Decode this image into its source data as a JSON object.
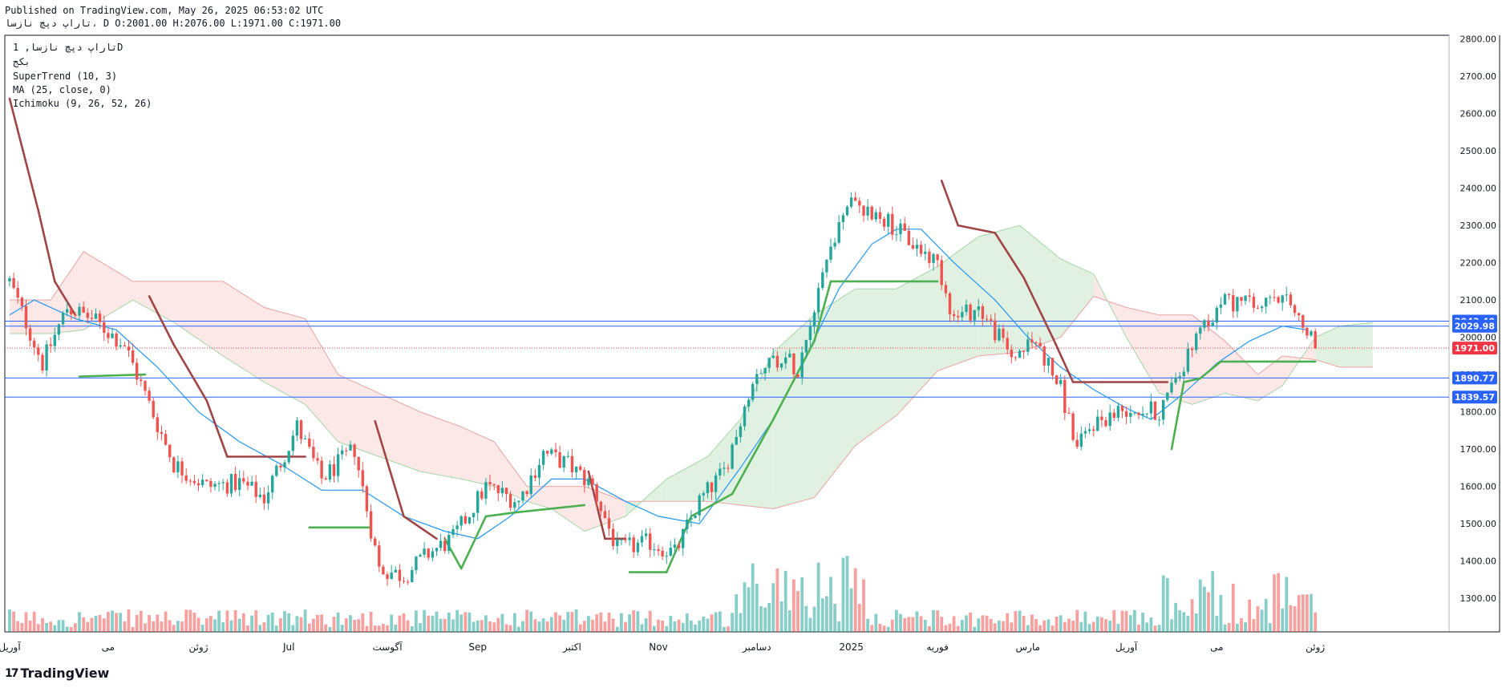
{
  "header": {
    "published": "Published on TradingView.com, May 26, 2025 06:53:02 UTC",
    "symbol_line": "تاراپ دپچ نازسا، D",
    "ohlc": "O:2001.00 H:2076.00 L:1971.00 C:1971.00"
  },
  "legend": {
    "line1": "تاراپ دپچ نازسا, 1D",
    "line2": "بکج",
    "line3": "SuperTrend (10, 3)",
    "line4": "MA (25, close, 0)",
    "line5": "Ichimoku (9, 26, 52, 26)"
  },
  "brand": {
    "mark": "17",
    "name": "TradingView"
  },
  "colors": {
    "bull": "#26a69a",
    "bear": "#ef5350",
    "supertrend_up": "#4caf50",
    "supertrend_down": "#a04545",
    "ma": "#2196f3",
    "cloud_bull": "#c8e6c9",
    "cloud_bear": "#fbd5d5",
    "level_line": "#2962ff",
    "close_label": "#f23645"
  },
  "chart_data": {
    "type": "candlestick",
    "ylim": [
      1210,
      2810
    ],
    "yticks": [
      1300,
      1400,
      1500,
      1600,
      1700,
      1800,
      1900,
      2000,
      2100,
      2200,
      2300,
      2400,
      2500,
      2600,
      2700,
      2800
    ],
    "ytick_labels": [
      "1300.00",
      "1400.00",
      "1500.00",
      "1600.00",
      "1700.00",
      "1800.00",
      "1900.00",
      "2000.00",
      "2100.00",
      "2200.00",
      "2300.00",
      "2400.00",
      "2500.00",
      "2600.00",
      "2700.00",
      "2800.00"
    ],
    "x_labels": [
      "آوریل",
      "می",
      "ژوئن",
      "Jul",
      "آگوست",
      "Sep",
      "اکتبر",
      "Nov",
      "دسامبر",
      "2025",
      "فوریه",
      "مارس",
      "آوریل",
      "می",
      "ژوئن"
    ],
    "x_label_bars": [
      0,
      24,
      46,
      68,
      92,
      114,
      137,
      158,
      182,
      205,
      226,
      248,
      272,
      294,
      318
    ],
    "level_lines": [
      {
        "value": 2043.4,
        "label": "2043.40"
      },
      {
        "value": 2029.98,
        "label": "2029.98"
      },
      {
        "value": 1890.77,
        "label": "1890.77"
      },
      {
        "value": 1839.57,
        "label": "1839.57"
      }
    ],
    "last_close": {
      "value": 1971.0,
      "label": "1971.00"
    },
    "anchors": [
      [
        0,
        2150
      ],
      [
        8,
        1930
      ],
      [
        14,
        2080
      ],
      [
        20,
        2050
      ],
      [
        28,
        1980
      ],
      [
        34,
        1820
      ],
      [
        40,
        1660
      ],
      [
        48,
        1600
      ],
      [
        56,
        1610
      ],
      [
        62,
        1570
      ],
      [
        70,
        1760
      ],
      [
        76,
        1620
      ],
      [
        84,
        1700
      ],
      [
        90,
        1380
      ],
      [
        96,
        1360
      ],
      [
        102,
        1420
      ],
      [
        108,
        1460
      ],
      [
        116,
        1600
      ],
      [
        124,
        1560
      ],
      [
        130,
        1690
      ],
      [
        136,
        1660
      ],
      [
        142,
        1600
      ],
      [
        148,
        1430
      ],
      [
        156,
        1450
      ],
      [
        162,
        1420
      ],
      [
        168,
        1560
      ],
      [
        174,
        1640
      ],
      [
        182,
        1920
      ],
      [
        188,
        1950
      ],
      [
        192,
        1920
      ],
      [
        198,
        2180
      ],
      [
        204,
        2360
      ],
      [
        212,
        2330
      ],
      [
        220,
        2250
      ],
      [
        226,
        2200
      ],
      [
        230,
        2050
      ],
      [
        236,
        2080
      ],
      [
        244,
        1950
      ],
      [
        250,
        1990
      ],
      [
        256,
        1860
      ],
      [
        260,
        1700
      ],
      [
        264,
        1770
      ],
      [
        272,
        1810
      ],
      [
        280,
        1800
      ],
      [
        284,
        1890
      ],
      [
        292,
        2040
      ],
      [
        296,
        2100
      ],
      [
        304,
        2080
      ],
      [
        310,
        2100
      ],
      [
        314,
        2050
      ],
      [
        318,
        1971
      ]
    ],
    "supertrend": [
      [
        0,
        2640,
        "down"
      ],
      [
        7,
        2340,
        "down"
      ],
      [
        11,
        2150,
        "down"
      ],
      [
        16,
        2060,
        "down"
      ],
      [
        17,
        1895,
        "up"
      ],
      [
        33,
        1900,
        "up"
      ],
      [
        34,
        2110,
        "down"
      ],
      [
        40,
        1980,
        "down"
      ],
      [
        48,
        1830,
        "down"
      ],
      [
        53,
        1680,
        "down"
      ],
      [
        72,
        1680,
        "down"
      ],
      [
        73,
        1490,
        "up"
      ],
      [
        88,
        1490,
        "up"
      ],
      [
        89,
        1775,
        "down"
      ],
      [
        96,
        1520,
        "down"
      ],
      [
        104,
        1460,
        "down"
      ],
      [
        106,
        1460,
        "up"
      ],
      [
        110,
        1380,
        "up"
      ],
      [
        116,
        1520,
        "up"
      ],
      [
        123,
        1530,
        "up"
      ],
      [
        140,
        1550,
        "up"
      ],
      [
        141,
        1640,
        "down"
      ],
      [
        145,
        1460,
        "down"
      ],
      [
        150,
        1460,
        "down"
      ],
      [
        151,
        1370,
        "up"
      ],
      [
        160,
        1370,
        "up"
      ],
      [
        166,
        1520,
        "up"
      ],
      [
        176,
        1580,
        "up"
      ],
      [
        186,
        1780,
        "up"
      ],
      [
        196,
        1990,
        "up"
      ],
      [
        200,
        2150,
        "up"
      ],
      [
        226,
        2150,
        "up"
      ],
      [
        227,
        2420,
        "down"
      ],
      [
        231,
        2300,
        "down"
      ],
      [
        240,
        2280,
        "down"
      ],
      [
        247,
        2160,
        "down"
      ],
      [
        254,
        2000,
        "down"
      ],
      [
        259,
        1880,
        "down"
      ],
      [
        266,
        1880,
        "down"
      ],
      [
        282,
        1880,
        "down"
      ],
      [
        283,
        1700,
        "up"
      ],
      [
        286,
        1880,
        "up"
      ],
      [
        290,
        1890,
        "up"
      ],
      [
        295,
        1935,
        "up"
      ],
      [
        318,
        1935,
        "up"
      ]
    ],
    "ma": [
      [
        0,
        2060
      ],
      [
        6,
        2100
      ],
      [
        16,
        2050
      ],
      [
        26,
        2020
      ],
      [
        36,
        1920
      ],
      [
        46,
        1800
      ],
      [
        56,
        1720
      ],
      [
        66,
        1660
      ],
      [
        76,
        1590
      ],
      [
        86,
        1590
      ],
      [
        96,
        1520
      ],
      [
        106,
        1480
      ],
      [
        114,
        1460
      ],
      [
        122,
        1520
      ],
      [
        132,
        1620
      ],
      [
        140,
        1620
      ],
      [
        150,
        1560
      ],
      [
        158,
        1520
      ],
      [
        168,
        1500
      ],
      [
        178,
        1650
      ],
      [
        186,
        1780
      ],
      [
        194,
        1950
      ],
      [
        202,
        2130
      ],
      [
        210,
        2250
      ],
      [
        216,
        2290
      ],
      [
        222,
        2290
      ],
      [
        230,
        2200
      ],
      [
        240,
        2100
      ],
      [
        248,
        2000
      ],
      [
        256,
        1920
      ],
      [
        264,
        1860
      ],
      [
        272,
        1810
      ],
      [
        278,
        1780
      ],
      [
        286,
        1850
      ],
      [
        294,
        1930
      ],
      [
        302,
        1990
      ],
      [
        310,
        2030
      ],
      [
        316,
        2020
      ]
    ],
    "cloud": [
      [
        0,
        2100,
        2010
      ],
      [
        10,
        2100,
        2010
      ],
      [
        18,
        2230,
        2020
      ],
      [
        30,
        2150,
        2100
      ],
      [
        40,
        2150,
        2040
      ],
      [
        52,
        2150,
        1950
      ],
      [
        62,
        2080,
        1880
      ],
      [
        72,
        2050,
        1820
      ],
      [
        80,
        1900,
        1720
      ],
      [
        90,
        1850,
        1680
      ],
      [
        100,
        1800,
        1640
      ],
      [
        110,
        1760,
        1620
      ],
      [
        118,
        1720,
        1600
      ],
      [
        126,
        1600,
        1560
      ],
      [
        132,
        1600,
        1540
      ],
      [
        140,
        1600,
        1480
      ],
      [
        150,
        1560,
        1520
      ],
      [
        160,
        1560,
        1620
      ],
      [
        170,
        1560,
        1680
      ],
      [
        178,
        1550,
        1780
      ],
      [
        186,
        1540,
        1960
      ],
      [
        196,
        1570,
        2060
      ],
      [
        206,
        1710,
        2130
      ],
      [
        216,
        1790,
        2130
      ],
      [
        226,
        1910,
        2190
      ],
      [
        236,
        1950,
        2270
      ],
      [
        246,
        1960,
        2300
      ],
      [
        256,
        2000,
        2210
      ],
      [
        264,
        2110,
        2170
      ],
      [
        272,
        2080,
        2000
      ],
      [
        280,
        2060,
        1850
      ],
      [
        288,
        2060,
        1820
      ],
      [
        296,
        1990,
        1850
      ],
      [
        304,
        1900,
        1830
      ],
      [
        310,
        1950,
        1870
      ],
      [
        318,
        1940,
        2000
      ],
      [
        324,
        1920,
        2030
      ],
      [
        332,
        1920,
        2040
      ]
    ]
  }
}
